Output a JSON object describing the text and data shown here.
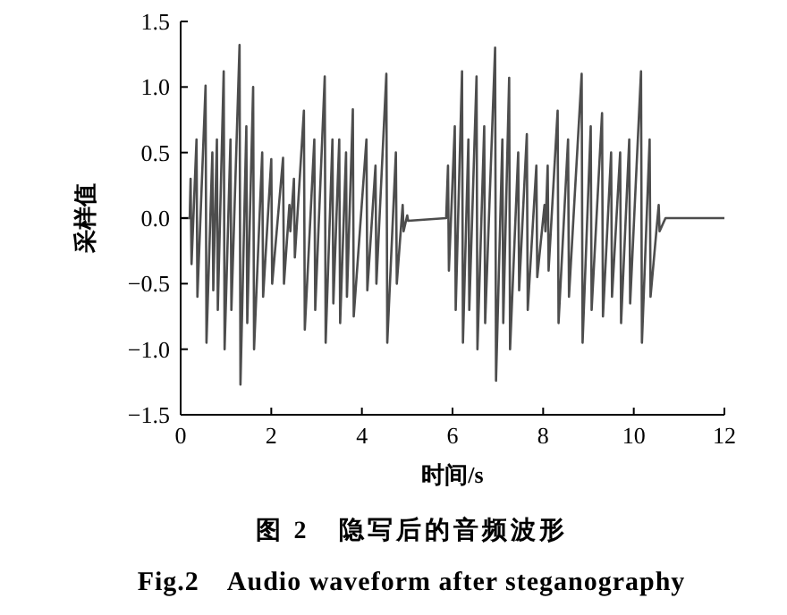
{
  "chart_data": {
    "type": "line",
    "xlabel": "时间/s",
    "ylabel": "采样值",
    "annotations": [
      "图 2　隐写后的音频波形",
      "Fig.2　Audio waveform after steganography"
    ],
    "xlim": [
      0,
      12
    ],
    "ylim": [
      -1.5,
      1.5
    ],
    "xticks": [
      0,
      2,
      4,
      6,
      8,
      10,
      12
    ],
    "yticks": [
      {
        "value": -1.5,
        "label": "−1.5"
      },
      {
        "value": -1,
        "label": "−1.0"
      },
      {
        "value": -0.5,
        "label": "−0.5"
      },
      {
        "value": 0,
        "label": "0.0"
      },
      {
        "value": 0.5,
        "label": "0.5"
      },
      {
        "value": 1,
        "label": "1.0"
      },
      {
        "value": 1.5,
        "label": "1.5"
      }
    ],
    "grid": false,
    "marker": "none",
    "line_style": "solid",
    "series": [
      {
        "color": "#4d4d4d",
        "x": [
          0,
          0.2,
          0.22,
          0.24,
          0.35,
          0.37,
          0.55,
          0.57,
          0.7,
          0.72,
          0.8,
          0.82,
          0.95,
          0.97,
          1.1,
          1.12,
          1.3,
          1.32,
          1.45,
          1.47,
          1.6,
          1.62,
          1.8,
          1.82,
          2.0,
          2.02,
          2.26,
          2.28,
          2.4,
          2.42,
          2.5,
          2.52,
          2.72,
          2.74,
          2.95,
          2.97,
          3.18,
          3.2,
          3.35,
          3.37,
          3.5,
          3.52,
          3.65,
          3.67,
          3.8,
          3.82,
          4.1,
          4.12,
          4.3,
          4.32,
          4.54,
          4.56,
          4.75,
          4.77,
          4.9,
          4.92,
          5.0,
          5.02,
          5.86,
          5.9,
          5.92,
          6.05,
          6.07,
          6.21,
          6.23,
          6.35,
          6.37,
          6.53,
          6.55,
          6.7,
          6.72,
          6.94,
          6.96,
          7.1,
          7.12,
          7.25,
          7.27,
          7.45,
          7.47,
          7.64,
          7.66,
          7.85,
          7.87,
          8.03,
          8.05,
          8.1,
          8.12,
          8.32,
          8.34,
          8.55,
          8.57,
          8.85,
          8.87,
          9.05,
          9.07,
          9.3,
          9.32,
          9.5,
          9.52,
          9.7,
          9.72,
          9.9,
          9.92,
          10.16,
          10.18,
          10.35,
          10.37,
          10.55,
          10.57,
          10.7,
          12
        ],
        "values": [
          0,
          0,
          0.3,
          -0.35,
          0.6,
          -0.6,
          1.01,
          -0.95,
          0.5,
          -0.55,
          0.6,
          -0.7,
          1.12,
          -1.0,
          0.6,
          -0.7,
          1.32,
          -1.27,
          0.7,
          -0.8,
          1.0,
          -1.0,
          0.5,
          -0.6,
          0.45,
          -0.5,
          0.46,
          -0.5,
          0.1,
          -0.1,
          0.3,
          -0.3,
          0.82,
          -0.85,
          0.6,
          -0.7,
          1.08,
          -0.95,
          0.6,
          -0.65,
          0.6,
          -0.8,
          0.5,
          -0.6,
          0.83,
          -0.75,
          0.6,
          -0.55,
          0.4,
          -0.5,
          1.1,
          -0.95,
          0.5,
          -0.5,
          0.1,
          -0.1,
          0.02,
          -0.02,
          0,
          0.4,
          -0.4,
          0.7,
          -0.7,
          1.12,
          -0.95,
          0.6,
          -0.7,
          1.08,
          -1.0,
          0.7,
          -0.8,
          1.3,
          -1.24,
          0.6,
          -0.8,
          1.07,
          -1.0,
          0.5,
          -0.55,
          0.64,
          -0.7,
          0.4,
          -0.45,
          0.1,
          -0.1,
          0.4,
          -0.4,
          0.82,
          -0.8,
          0.6,
          -0.6,
          1.1,
          -0.95,
          0.7,
          -0.7,
          0.8,
          -0.75,
          0.5,
          -0.6,
          0.5,
          -0.8,
          0.6,
          -0.65,
          1.12,
          -0.95,
          0.6,
          -0.6,
          0.1,
          -0.1,
          0,
          0
        ]
      }
    ]
  }
}
